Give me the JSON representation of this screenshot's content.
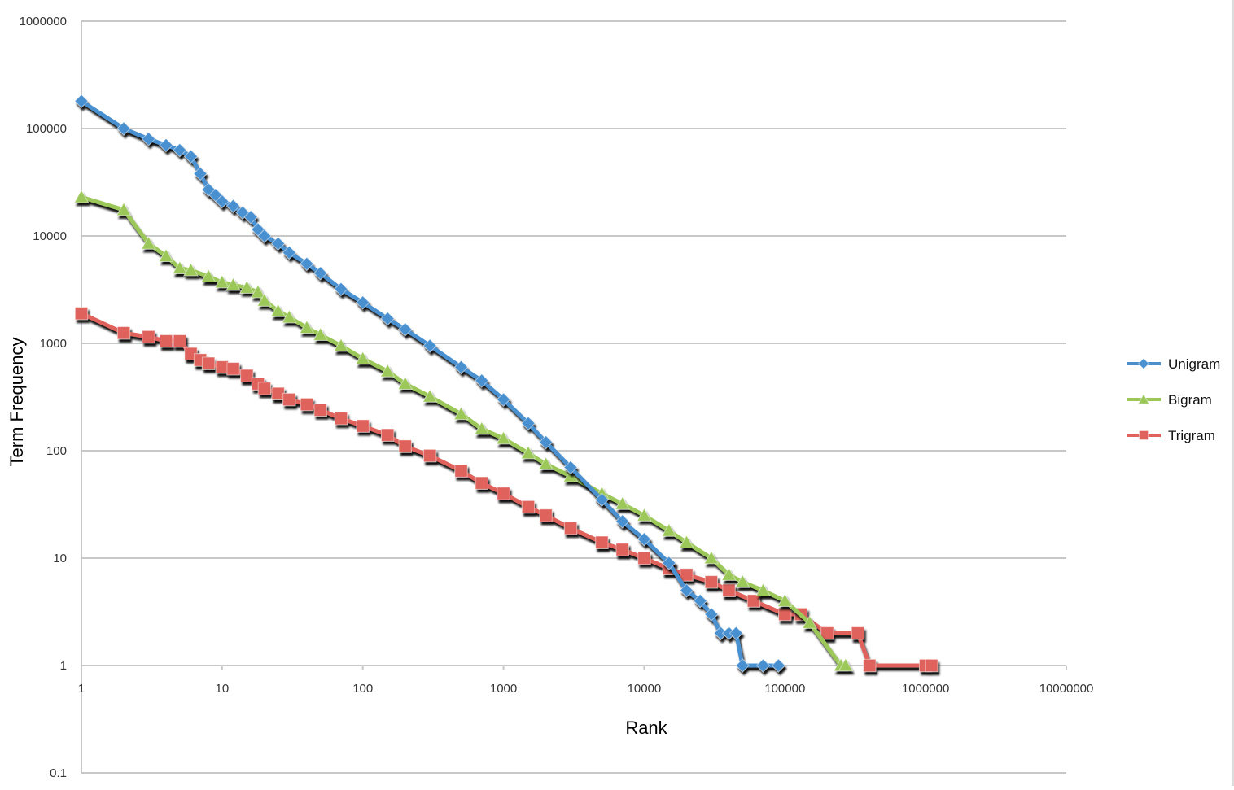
{
  "chart_data": {
    "type": "line",
    "title": "",
    "xlabel": "Rank",
    "ylabel": "Term Frequency",
    "xscale": "log",
    "yscale": "log",
    "xlim": [
      1,
      10000000
    ],
    "ylim": [
      0.1,
      1000000
    ],
    "x_ticks": [
      "1",
      "10",
      "100",
      "1000",
      "10000",
      "100000",
      "1000000",
      "10000000"
    ],
    "y_ticks": [
      "0.1",
      "1",
      "10",
      "100",
      "1000",
      "10000",
      "100000",
      "1000000"
    ],
    "grid": "horizontal",
    "legend_position": "right",
    "series": [
      {
        "name": "Unigram",
        "color": "#4a90d0",
        "marker": "diamond",
        "x": [
          1,
          2,
          3,
          4,
          5,
          6,
          7,
          8,
          9,
          10,
          12,
          14,
          16,
          18,
          20,
          25,
          30,
          40,
          50,
          70,
          100,
          150,
          200,
          300,
          500,
          700,
          1000,
          1500,
          2000,
          3000,
          5000,
          7000,
          10000,
          15000,
          20000,
          25000,
          30000,
          35000,
          40000,
          45000,
          50000,
          70000,
          90000
        ],
        "y": [
          180000,
          100000,
          80000,
          70000,
          63000,
          55000,
          38000,
          27000,
          24000,
          21000,
          19000,
          16500,
          15000,
          11500,
          10000,
          8500,
          7000,
          5500,
          4500,
          3200,
          2400,
          1700,
          1350,
          950,
          600,
          450,
          300,
          180,
          120,
          70,
          35,
          22,
          15,
          9,
          5,
          4,
          3,
          2,
          2,
          2,
          1,
          1,
          1
        ]
      },
      {
        "name": "Bigram",
        "color": "#9cc85a",
        "marker": "triangle",
        "x": [
          1,
          2,
          3,
          4,
          5,
          6,
          8,
          10,
          12,
          15,
          18,
          20,
          25,
          30,
          40,
          50,
          70,
          100,
          150,
          200,
          300,
          500,
          700,
          1000,
          1500,
          2000,
          3000,
          5000,
          7000,
          10000,
          15000,
          20000,
          30000,
          40000,
          50000,
          70000,
          100000,
          150000,
          250000,
          270000
        ],
        "y": [
          23000,
          17500,
          8500,
          6500,
          5000,
          4800,
          4200,
          3700,
          3500,
          3300,
          3000,
          2500,
          2000,
          1750,
          1400,
          1200,
          950,
          720,
          550,
          420,
          320,
          220,
          160,
          130,
          95,
          75,
          58,
          40,
          32,
          25,
          18,
          14,
          10,
          7,
          6,
          5,
          4,
          2.5,
          1,
          1
        ]
      },
      {
        "name": "Trigram",
        "color": "#df625c",
        "marker": "square",
        "x": [
          1,
          2,
          3,
          4,
          5,
          6,
          7,
          8,
          10,
          12,
          15,
          18,
          20,
          25,
          30,
          40,
          50,
          70,
          100,
          150,
          200,
          300,
          500,
          700,
          1000,
          1500,
          2000,
          3000,
          5000,
          7000,
          10000,
          15000,
          20000,
          30000,
          40000,
          60000,
          100000,
          130000,
          200000,
          330000,
          400000,
          1000000,
          1100000
        ],
        "y": [
          1900,
          1250,
          1150,
          1050,
          1050,
          800,
          700,
          650,
          600,
          580,
          500,
          420,
          380,
          340,
          300,
          270,
          240,
          200,
          170,
          140,
          110,
          90,
          65,
          50,
          40,
          30,
          25,
          19,
          14,
          12,
          10,
          8,
          7,
          6,
          5,
          4,
          3,
          3,
          2,
          2,
          1,
          1,
          1
        ]
      }
    ]
  }
}
